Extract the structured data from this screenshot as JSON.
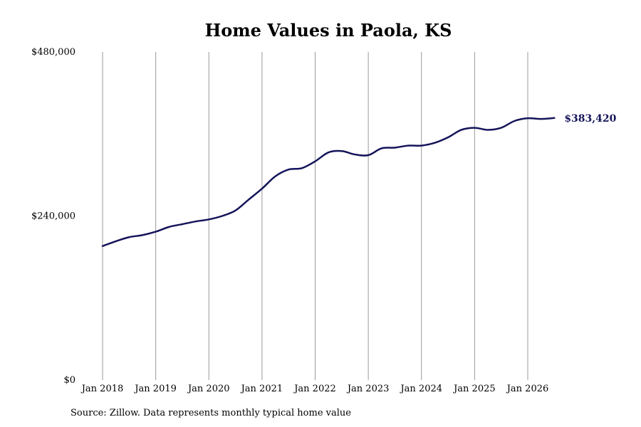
{
  "chart_data": {
    "type": "line",
    "title": "Home Values in Paola, KS",
    "source": "Source: Zillow. Data represents monthly typical home value",
    "line_color": "#14145a",
    "grid_color": "#9a9a9a",
    "grid": "vertical",
    "ylim": [
      0,
      480000
    ],
    "y_ticks": [
      {
        "value": 0,
        "label": "$0"
      },
      {
        "value": 240000,
        "label": "$240,000"
      },
      {
        "value": 480000,
        "label": "$480,000"
      }
    ],
    "x_ticks": [
      {
        "value": 2018.0,
        "label": "Jan 2018"
      },
      {
        "value": 2019.0,
        "label": "Jan 2019"
      },
      {
        "value": 2020.0,
        "label": "Jan 2020"
      },
      {
        "value": 2021.0,
        "label": "Jan 2021"
      },
      {
        "value": 2022.0,
        "label": "Jan 2022"
      },
      {
        "value": 2023.0,
        "label": "Jan 2023"
      },
      {
        "value": 2024.0,
        "label": "Jan 2024"
      },
      {
        "value": 2025.0,
        "label": "Jan 2025"
      },
      {
        "value": 2026.0,
        "label": "Jan 2026"
      }
    ],
    "end_label": "$383,420",
    "series": [
      {
        "x": [
          2018.0,
          2018.25,
          2018.5,
          2018.75,
          2019.0,
          2019.25,
          2019.5,
          2019.75,
          2020.0,
          2020.25,
          2020.5,
          2020.75,
          2021.0,
          2021.25,
          2021.5,
          2021.75,
          2022.0,
          2022.25,
          2022.5,
          2022.75,
          2023.0,
          2023.25,
          2023.5,
          2023.75,
          2024.0,
          2024.25,
          2024.5,
          2024.75,
          2025.0,
          2025.25,
          2025.5,
          2025.75,
          2026.0,
          2026.25,
          2026.5
        ],
        "values": [
          196000,
          203000,
          209000,
          212000,
          217000,
          224000,
          228000,
          232000,
          235000,
          240000,
          248000,
          264000,
          280000,
          298000,
          308000,
          310000,
          320000,
          333000,
          335000,
          330000,
          329000,
          339000,
          340000,
          343000,
          343000,
          347000,
          355000,
          366000,
          369000,
          366000,
          369000,
          379000,
          383000,
          382000,
          383420
        ]
      }
    ]
  }
}
